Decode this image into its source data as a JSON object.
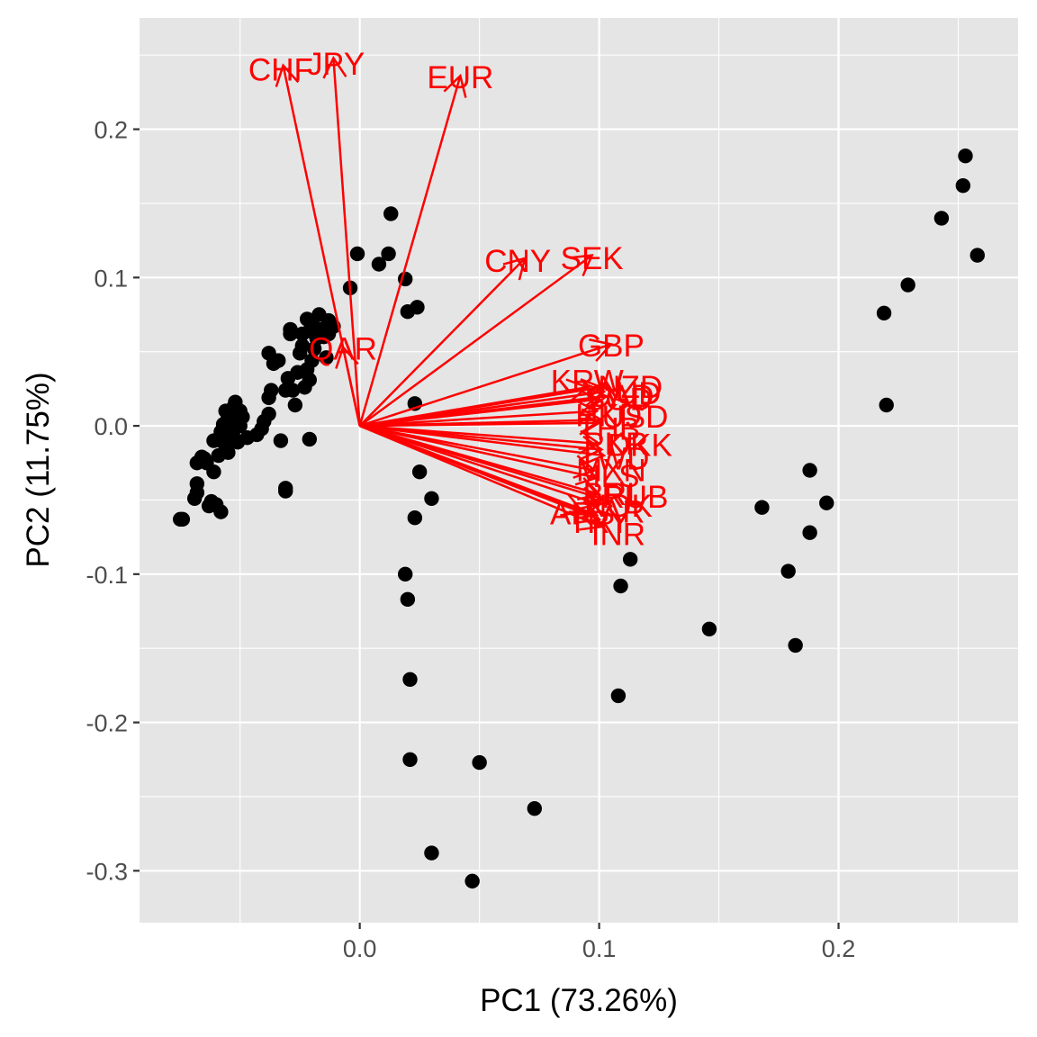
{
  "chart_data": {
    "type": "scatter",
    "subtype": "pca-biplot",
    "title": "",
    "xlabel": "PC1 (73.26%)",
    "ylabel": "PC2 (11.75%)",
    "xlim": [
      -0.092,
      0.275
    ],
    "ylim": [
      -0.335,
      0.275
    ],
    "x_ticks": [
      {
        "value": 0.0,
        "label": "0.0"
      },
      {
        "value": 0.1,
        "label": "0.1"
      },
      {
        "value": 0.2,
        "label": "0.2"
      }
    ],
    "y_ticks": [
      {
        "value": -0.3,
        "label": "-0.3"
      },
      {
        "value": -0.2,
        "label": "-0.2"
      },
      {
        "value": -0.1,
        "label": "-0.1"
      },
      {
        "value": 0.0,
        "label": "0.0"
      },
      {
        "value": 0.1,
        "label": "0.1"
      },
      {
        "value": 0.2,
        "label": "0.2"
      }
    ],
    "grid": true,
    "background_color": "#e5e5e5",
    "grid_color": "#ffffff",
    "point_color": "#000000",
    "arrow_color": "#ff0000",
    "points": [
      [
        -0.075,
        -0.063
      ],
      [
        -0.074,
        -0.063
      ],
      [
        -0.069,
        -0.049
      ],
      [
        -0.068,
        -0.045
      ],
      [
        -0.068,
        -0.039
      ],
      [
        -0.068,
        -0.025
      ],
      [
        -0.066,
        -0.021
      ],
      [
        -0.065,
        -0.022
      ],
      [
        -0.064,
        -0.025
      ],
      [
        -0.063,
        -0.054
      ],
      [
        -0.062,
        -0.051
      ],
      [
        -0.061,
        -0.031
      ],
      [
        -0.061,
        -0.01
      ],
      [
        -0.06,
        -0.053
      ],
      [
        -0.058,
        -0.058
      ],
      [
        -0.059,
        -0.02
      ],
      [
        -0.058,
        -0.01
      ],
      [
        -0.058,
        -0.004
      ],
      [
        -0.057,
        0.001
      ],
      [
        -0.056,
        -0.013
      ],
      [
        -0.056,
        0.01
      ],
      [
        -0.055,
        -0.018
      ],
      [
        -0.055,
        0.006
      ],
      [
        -0.054,
        -0.002
      ],
      [
        -0.054,
        0.008
      ],
      [
        -0.053,
        -0.006
      ],
      [
        -0.053,
        0.012
      ],
      [
        -0.052,
        0.016
      ],
      [
        -0.052,
        0.004
      ],
      [
        -0.051,
        -0.011
      ],
      [
        -0.05,
        0.0
      ],
      [
        -0.05,
        0.01
      ],
      [
        -0.049,
        0.006
      ],
      [
        -0.047,
        -0.008
      ],
      [
        -0.043,
        -0.006
      ],
      [
        -0.041,
        -0.002
      ],
      [
        -0.04,
        0.003
      ],
      [
        -0.038,
        0.008
      ],
      [
        -0.038,
        0.019
      ],
      [
        -0.037,
        0.024
      ],
      [
        -0.038,
        0.049
      ],
      [
        -0.036,
        0.042
      ],
      [
        -0.034,
        0.044
      ],
      [
        -0.033,
        -0.01
      ],
      [
        -0.031,
        0.024
      ],
      [
        -0.03,
        0.032
      ],
      [
        -0.029,
        0.062
      ],
      [
        -0.029,
        0.065
      ],
      [
        -0.031,
        -0.042
      ],
      [
        -0.031,
        -0.044
      ],
      [
        -0.028,
        0.024
      ],
      [
        -0.027,
        0.014
      ],
      [
        -0.026,
        0.036
      ],
      [
        -0.025,
        0.049
      ],
      [
        -0.024,
        0.054
      ],
      [
        -0.024,
        0.062
      ],
      [
        -0.023,
        0.026
      ],
      [
        -0.022,
        0.072
      ],
      [
        -0.022,
        0.038
      ],
      [
        -0.021,
        0.031
      ],
      [
        -0.021,
        0.064
      ],
      [
        -0.02,
        0.044
      ],
      [
        -0.02,
        0.069
      ],
      [
        -0.019,
        0.052
      ],
      [
        -0.018,
        0.059
      ],
      [
        -0.021,
        -0.009
      ],
      [
        -0.017,
        0.075
      ],
      [
        -0.016,
        0.065
      ],
      [
        -0.015,
        0.06
      ],
      [
        -0.014,
        0.046
      ],
      [
        -0.013,
        0.071
      ],
      [
        -0.013,
        0.062
      ],
      [
        -0.011,
        0.067
      ],
      [
        -0.004,
        0.093
      ],
      [
        -0.001,
        0.116
      ],
      [
        0.008,
        0.109
      ],
      [
        0.012,
        0.116
      ],
      [
        0.013,
        0.143
      ],
      [
        0.019,
        0.099
      ],
      [
        0.02,
        0.077
      ],
      [
        0.024,
        0.08
      ],
      [
        0.023,
        0.015
      ],
      [
        0.025,
        -0.031
      ],
      [
        0.023,
        -0.062
      ],
      [
        0.03,
        -0.049
      ],
      [
        0.019,
        -0.1
      ],
      [
        0.02,
        -0.117
      ],
      [
        0.021,
        -0.171
      ],
      [
        0.021,
        -0.225
      ],
      [
        0.03,
        -0.288
      ],
      [
        0.047,
        -0.307
      ],
      [
        0.05,
        -0.227
      ],
      [
        0.073,
        -0.258
      ],
      [
        0.113,
        -0.09
      ],
      [
        0.109,
        -0.108
      ],
      [
        0.108,
        -0.182
      ],
      [
        0.146,
        -0.137
      ],
      [
        0.168,
        -0.055
      ],
      [
        0.179,
        -0.098
      ],
      [
        0.182,
        -0.148
      ],
      [
        0.188,
        -0.03
      ],
      [
        0.188,
        -0.072
      ],
      [
        0.195,
        -0.052
      ],
      [
        0.219,
        0.076
      ],
      [
        0.22,
        0.014
      ],
      [
        0.229,
        0.095
      ],
      [
        0.243,
        0.14
      ],
      [
        0.252,
        0.162
      ],
      [
        0.253,
        0.182
      ],
      [
        0.258,
        0.115
      ]
    ],
    "loadings": [
      {
        "label": "CHF",
        "x": -0.032,
        "y": 0.243,
        "lx": -0.033,
        "ly": 0.24
      },
      {
        "label": "JPY",
        "x": -0.011,
        "y": 0.248,
        "lx": -0.01,
        "ly": 0.244
      },
      {
        "label": "EUR",
        "x": 0.042,
        "y": 0.236,
        "lx": 0.042,
        "ly": 0.235
      },
      {
        "label": "CNY",
        "x": 0.069,
        "y": 0.113,
        "lx": 0.066,
        "ly": 0.111
      },
      {
        "label": "SEK",
        "x": 0.097,
        "y": 0.115,
        "lx": 0.097,
        "ly": 0.113
      },
      {
        "label": "QAR",
        "x": -0.007,
        "y": 0.053,
        "lx": -0.007,
        "ly": 0.052
      },
      {
        "label": "GBP",
        "x": 0.105,
        "y": 0.055,
        "lx": 0.105,
        "ly": 0.054
      },
      {
        "label": "KRW",
        "x": 0.095,
        "y": 0.026,
        "lx": 0.095,
        "ly": 0.03
      },
      {
        "label": "NZD",
        "x": 0.101,
        "y": 0.026,
        "lx": 0.113,
        "ly": 0.026
      },
      {
        "label": "AUD",
        "x": 0.102,
        "y": 0.023,
        "lx": 0.112,
        "ly": 0.022
      },
      {
        "label": "CAD",
        "x": 0.103,
        "y": 0.02,
        "lx": 0.109,
        "ly": 0.02
      },
      {
        "label": "SGD",
        "x": 0.1,
        "y": 0.018,
        "lx": 0.108,
        "ly": 0.018
      },
      {
        "label": "HKD",
        "x": 0.099,
        "y": 0.01,
        "lx": 0.104,
        "ly": 0.007
      },
      {
        "label": "USD",
        "x": 0.101,
        "y": 0.004,
        "lx": 0.115,
        "ly": 0.006
      },
      {
        "label": "THB",
        "x": 0.1,
        "y": 0.002,
        "lx": 0.104,
        "ly": -0.002
      },
      {
        "label": "PKR",
        "x": 0.1,
        "y": -0.012,
        "lx": 0.107,
        "ly": -0.012
      },
      {
        "label": "DKK",
        "x": 0.101,
        "y": -0.016,
        "lx": 0.117,
        "ly": -0.013
      },
      {
        "label": "TWD",
        "x": 0.102,
        "y": -0.02,
        "lx": 0.106,
        "ly": -0.022
      },
      {
        "label": "MXN",
        "x": 0.098,
        "y": -0.03,
        "lx": 0.105,
        "ly": -0.03
      },
      {
        "label": "ILS",
        "x": 0.099,
        "y": -0.035,
        "lx": 0.107,
        "ly": -0.034
      },
      {
        "label": "BRL",
        "x": 0.1,
        "y": -0.046,
        "lx": 0.106,
        "ly": -0.046
      },
      {
        "label": "RUB",
        "x": 0.101,
        "y": -0.049,
        "lx": 0.115,
        "ly": -0.048
      },
      {
        "label": "NOK",
        "x": 0.1,
        "y": -0.053,
        "lx": 0.108,
        "ly": -0.054
      },
      {
        "label": "ARS",
        "x": 0.093,
        "y": -0.058,
        "lx": 0.093,
        "ly": -0.059
      },
      {
        "label": "ZAR",
        "x": 0.099,
        "y": -0.06,
        "lx": 0.106,
        "ly": -0.058
      },
      {
        "label": "TRY",
        "x": 0.1,
        "y": -0.063,
        "lx": 0.1,
        "ly": -0.065
      },
      {
        "label": "INR",
        "x": 0.101,
        "y": -0.068,
        "lx": 0.108,
        "ly": -0.073
      }
    ]
  }
}
